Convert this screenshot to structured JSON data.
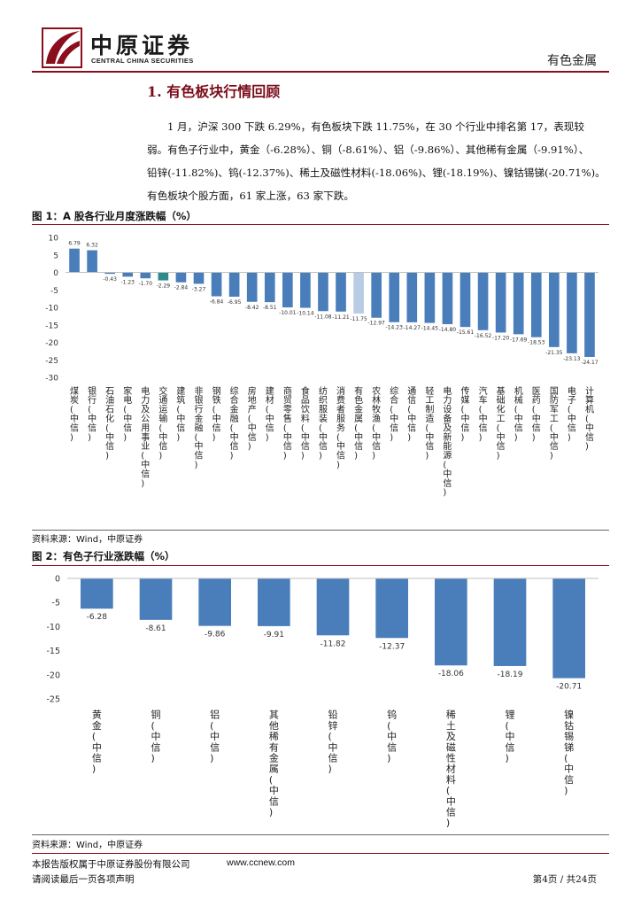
{
  "header": {
    "logo_cn": "中原证券",
    "logo_en": "CENTRAL CHINA SECURITIES",
    "category": "有色金属",
    "brand_color": "#8a0f1d"
  },
  "section": {
    "title": "1. 有色板块行情回顾",
    "intro_lines": [
      "1 月，沪深 300 下跌 6.29%，有色板块下跌 11.75%，在 30 个行业中排名第 17，表现较",
      "弱。有色子行业中，黄金（-6.28%）、铜（-8.61%）、铝（-9.86%）、其他稀有金属（-9.91%）、",
      "铅锌(-11.82%)、钨(-12.37%)、稀土及磁性材料(-18.06%)、锂(-18.19%)、镍钴锡锑(-20.71%)。",
      "有色板块个股方面，61 家上涨，63 家下跌。"
    ]
  },
  "figure1": {
    "title": "图 1：A 股各行业月度涨跌幅（%）",
    "source": "资料来源：Wind，中原证券"
  },
  "figure2": {
    "title": "图 2：有色子行业涨跌幅（%）",
    "source": "资料来源：Wind，中原证券"
  },
  "footer": {
    "copyright": "本报告版权属于中原证券股份有限公司",
    "website": "www.ccnew.com",
    "disclaimer": "请阅读最后一页各项声明",
    "page": "第4页  /  共24页"
  },
  "chart_data": [
    {
      "type": "bar",
      "title": "图 1：A 股各行业月度涨跌幅（%）",
      "ylim": [
        -30,
        10
      ],
      "yticks": [
        10,
        5,
        0,
        -5,
        -10,
        -15,
        -20,
        -25,
        -30
      ],
      "grid": false,
      "categories": [
        "煤炭(中信)",
        "银行(中信)",
        "石油石化(中信)",
        "家电(中信)",
        "电力及公用事业(中信)",
        "交通运输(中信)",
        "建筑(中信)",
        "非银行金融(中信)",
        "钢铁(中信)",
        "综合金融(中信)",
        "房地产(中信)",
        "建材(中信)",
        "商贸零售(中信)",
        "食品饮料(中信)",
        "纺织服装(中信)",
        "消费者服务(中信)",
        "有色金属(中信)",
        "农林牧渔(中信)",
        "综合(中信)",
        "通信(中信)",
        "轻工制造(中信)",
        "电力设备及新能源(中信)",
        "传媒(中信)",
        "汽车(中信)",
        "基础化工(中信)",
        "机械(中信)",
        "医药(中信)",
        "国防军工(中信)",
        "电子(中信)",
        "计算机(中信)"
      ],
      "values": [
        6.79,
        6.32,
        -0.43,
        -1.23,
        -1.7,
        -2.29,
        -2.84,
        -3.27,
        -6.84,
        -6.95,
        -8.42,
        -8.51,
        -10.01,
        -10.14,
        -11.08,
        -11.21,
        -11.75,
        -12.97,
        -14.23,
        -14.27,
        -14.45,
        -14.8,
        -15.61,
        -16.52,
        -17.2,
        -17.69,
        -18.53,
        -21.35,
        -23.13,
        -24.17
      ],
      "value_labels": [
        "6.79",
        "6.32",
        "-0.43",
        "-1.23",
        "-1.70",
        "-2.29",
        "-2.84",
        "-3.27",
        "-6.84",
        "-6.95",
        "-8.42",
        "-8.51",
        "-10.01",
        "-10.14",
        "-11.08",
        "-11.21",
        "-11.75",
        "-12.97",
        "-14.23",
        "-14.27",
        "-14.45",
        "-14.80",
        "-15.61",
        "-16.52",
        "-17.20",
        "-17.69",
        "-18.53",
        "-21.35",
        "-23.13",
        "-24.17"
      ],
      "bar_color": "#4a7ebb",
      "highlight": {
        "交通运输(中信)": "#2e8b8b",
        "有色金属(中信)": "#b8cce4"
      }
    },
    {
      "type": "bar",
      "title": "图 2：有色子行业涨跌幅（%）",
      "ylim": [
        -25,
        0
      ],
      "yticks": [
        0,
        -5,
        -10,
        -15,
        -20,
        -25
      ],
      "grid": false,
      "categories": [
        "黄金(中信)",
        "铜(中信)",
        "铝(中信)",
        "其他稀有金属(中信)",
        "铅锌(中信)",
        "钨(中信)",
        "稀土及磁性材料(中信)",
        "锂(中信)",
        "镍钴锡锑(中信)"
      ],
      "values": [
        -6.28,
        -8.61,
        -9.86,
        -9.91,
        -11.82,
        -12.37,
        -18.06,
        -18.19,
        -20.71
      ],
      "value_labels": [
        "-6.28",
        "-8.61",
        "-9.86",
        "-9.91",
        "-11.82",
        "-12.37",
        "-18.06",
        "-18.19",
        "-20.71"
      ],
      "bar_color": "#4a7ebb"
    }
  ]
}
